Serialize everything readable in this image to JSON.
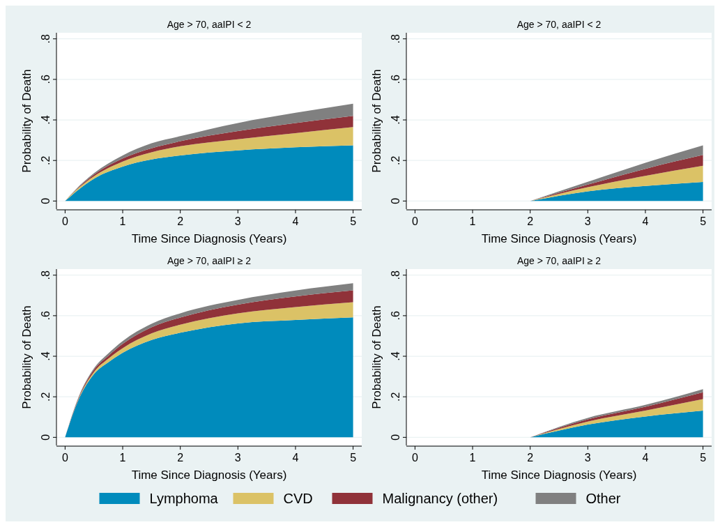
{
  "chart_data": [
    {
      "type": "area",
      "stacked": true,
      "title": "Age > 70, aaIPI < 2",
      "xlabel": "Time Since Diagnosis (Years)",
      "ylabel": "Probability of Death",
      "x": [
        0,
        0.25,
        0.5,
        1,
        1.5,
        2,
        3,
        4,
        5
      ],
      "xlim": [
        -0.15,
        5.15
      ],
      "xticks": [
        0,
        1,
        2,
        3,
        4,
        5
      ],
      "ylim": [
        -0.04,
        0.83
      ],
      "yticks": [
        {
          "value": 0,
          "label": "0"
        },
        {
          "value": 0.2,
          "label": ".2"
        },
        {
          "value": 0.4,
          "label": ".4"
        },
        {
          "value": 0.6,
          "label": ".6"
        },
        {
          "value": 0.8,
          "label": ".8"
        }
      ],
      "grid": "y",
      "series": [
        {
          "color": "#008bbc",
          "values": [
            0,
            0.06,
            0.11,
            0.17,
            0.205,
            0.225,
            0.25,
            0.265,
            0.275
          ]
        },
        {
          "color": "#dbc266",
          "values": [
            0,
            0.008,
            0.012,
            0.025,
            0.035,
            0.045,
            0.055,
            0.07,
            0.09
          ]
        },
        {
          "color": "#903239",
          "values": [
            0,
            0.004,
            0.008,
            0.015,
            0.02,
            0.025,
            0.04,
            0.05,
            0.055
          ]
        },
        {
          "color": "#808080",
          "values": [
            0,
            0.004,
            0.007,
            0.015,
            0.025,
            0.025,
            0.04,
            0.05,
            0.06
          ]
        }
      ]
    },
    {
      "type": "area",
      "stacked": true,
      "title": "Age > 70, aaIPI < 2",
      "xlabel": "Time Since Diagnosis (Years)",
      "ylabel": "Probability of Death",
      "x": [
        2,
        3,
        4,
        5
      ],
      "xlim": [
        -0.15,
        5.15
      ],
      "xticks": [
        0,
        1,
        2,
        3,
        4,
        5
      ],
      "ylim": [
        -0.04,
        0.83
      ],
      "yticks": [
        {
          "value": 0,
          "label": "0"
        },
        {
          "value": 0.2,
          "label": ".2"
        },
        {
          "value": 0.4,
          "label": ".4"
        },
        {
          "value": 0.6,
          "label": ".6"
        },
        {
          "value": 0.8,
          "label": ".8"
        }
      ],
      "grid": "y",
      "series": [
        {
          "color": "#008bbc",
          "values": [
            0,
            0.048,
            0.074,
            0.094
          ]
        },
        {
          "color": "#dbc266",
          "values": [
            0,
            0.02,
            0.05,
            0.08
          ]
        },
        {
          "color": "#903239",
          "values": [
            0,
            0.013,
            0.035,
            0.053
          ]
        },
        {
          "color": "#808080",
          "values": [
            0,
            0.014,
            0.03,
            0.048
          ]
        }
      ]
    },
    {
      "type": "area",
      "stacked": true,
      "title": "Age > 70, aaIPI ≥ 2",
      "xlabel": "Time Since Diagnosis (Years)",
      "ylabel": "Probability of Death",
      "x": [
        0,
        0.25,
        0.5,
        0.75,
        1,
        1.5,
        2,
        3,
        4,
        5
      ],
      "xlim": [
        -0.15,
        5.15
      ],
      "xticks": [
        0,
        1,
        2,
        3,
        4,
        5
      ],
      "ylim": [
        -0.04,
        0.83
      ],
      "yticks": [
        {
          "value": 0,
          "label": "0"
        },
        {
          "value": 0.2,
          "label": ".2"
        },
        {
          "value": 0.4,
          "label": ".4"
        },
        {
          "value": 0.6,
          "label": ".6"
        },
        {
          "value": 0.8,
          "label": ".8"
        }
      ],
      "grid": "y",
      "series": [
        {
          "color": "#008bbc",
          "values": [
            0,
            0.196,
            0.312,
            0.37,
            0.417,
            0.48,
            0.516,
            0.562,
            0.579,
            0.592
          ]
        },
        {
          "color": "#dbc266",
          "values": [
            0,
            0.004,
            0.01,
            0.018,
            0.023,
            0.033,
            0.04,
            0.05,
            0.064,
            0.075
          ]
        },
        {
          "color": "#903239",
          "values": [
            0,
            0.005,
            0.011,
            0.014,
            0.021,
            0.03,
            0.035,
            0.043,
            0.052,
            0.058
          ]
        },
        {
          "color": "#808080",
          "values": [
            0,
            0.005,
            0.007,
            0.012,
            0.014,
            0.017,
            0.021,
            0.023,
            0.029,
            0.035
          ]
        }
      ]
    },
    {
      "type": "area",
      "stacked": true,
      "title": "Age > 70, aaIPI ≥ 2",
      "xlabel": "Time Since Diagnosis (Years)",
      "ylabel": "Probability of Death",
      "x": [
        2,
        3,
        4,
        5
      ],
      "xlim": [
        -0.15,
        5.15
      ],
      "xticks": [
        0,
        1,
        2,
        3,
        4,
        5
      ],
      "ylim": [
        -0.04,
        0.83
      ],
      "yticks": [
        {
          "value": 0,
          "label": "0"
        },
        {
          "value": 0.2,
          "label": ".2"
        },
        {
          "value": 0.4,
          "label": ".4"
        },
        {
          "value": 0.6,
          "label": ".6"
        },
        {
          "value": 0.8,
          "label": ".8"
        }
      ],
      "grid": "y",
      "legend": "bottom",
      "series": [
        {
          "name": "Lymphoma",
          "color": "#008bbc",
          "values": [
            0,
            0.063,
            0.103,
            0.132
          ]
        },
        {
          "name": "CVD",
          "color": "#dbc266",
          "values": [
            0,
            0.015,
            0.029,
            0.057
          ]
        },
        {
          "name": "Malignancy (other)",
          "color": "#903239",
          "values": [
            0,
            0.011,
            0.019,
            0.033
          ]
        },
        {
          "name": "Other",
          "color": "#808080",
          "values": [
            0,
            0.007,
            0.009,
            0.016
          ]
        }
      ]
    }
  ]
}
